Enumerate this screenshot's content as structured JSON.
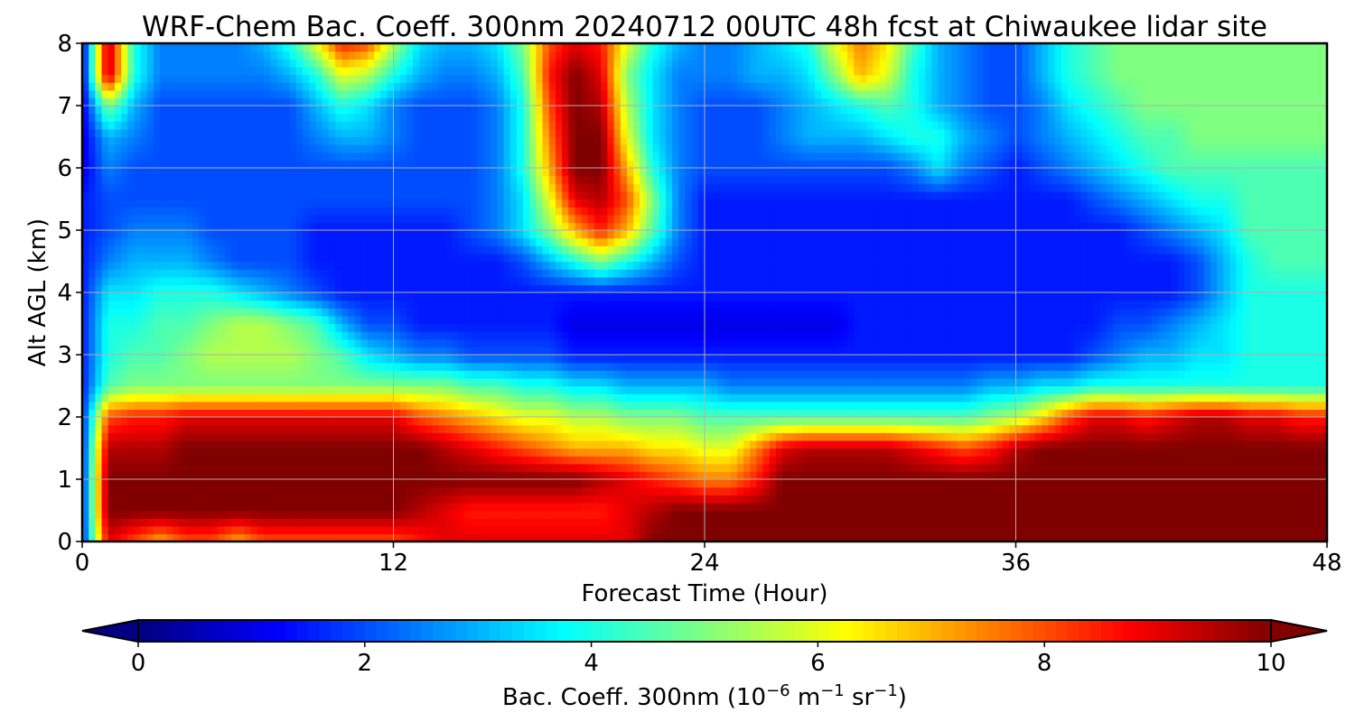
{
  "chart_data": {
    "type": "heatmap",
    "title": "WRF-Chem Bac. Coeff. 300nm  20240712 00UTC 48h fcst at Chiwaukee lidar site",
    "xlabel": "Forecast Time (Hour)",
    "ylabel": "Alt AGL (km)",
    "xlim": [
      0,
      48
    ],
    "ylim": [
      0,
      8
    ],
    "xticks": [
      0,
      12,
      24,
      36,
      48
    ],
    "yticks": [
      0,
      1,
      2,
      3,
      4,
      5,
      6,
      7,
      8
    ],
    "grid": true,
    "colormap": "jet",
    "colorbar": {
      "orientation": "horizontal",
      "placement": "bottom",
      "range": [
        0,
        10
      ],
      "ticks": [
        0,
        2,
        4,
        6,
        8,
        10
      ],
      "extend": "both",
      "label": "Bac. Coeff. 300nm  (10",
      "label_exp1": "−6",
      "label_mid": " m",
      "label_exp2": "−1",
      "label_mid2": " sr",
      "label_exp3": "−1",
      "label_end": ")"
    },
    "x": [
      0,
      1,
      2,
      3,
      4,
      5,
      6,
      7,
      8,
      9,
      10,
      11,
      12,
      13,
      14,
      15,
      16,
      17,
      18,
      19,
      20,
      21,
      22,
      23,
      24,
      25,
      26,
      27,
      28,
      29,
      30,
      31,
      32,
      33,
      34,
      35,
      36,
      37,
      38,
      39,
      40,
      41,
      42,
      43,
      44,
      45,
      46,
      47,
      48
    ],
    "y": [
      0,
      0.5,
      1,
      1.5,
      2,
      2.5,
      3,
      3.5,
      4,
      4.5,
      5,
      5.5,
      6,
      6.5,
      7,
      7.5,
      8
    ],
    "z": [
      [
        1.5,
        9,
        8,
        7,
        8,
        8,
        7,
        8,
        8,
        8,
        8,
        8,
        8,
        8.5,
        9,
        9,
        9,
        9,
        9,
        9,
        9,
        9,
        10,
        10,
        10,
        10,
        10,
        10,
        10,
        10,
        10,
        10,
        10,
        10,
        10,
        10,
        10,
        10,
        10,
        10,
        10,
        10,
        10,
        10,
        10,
        10,
        10,
        10,
        10
      ],
      [
        1.5,
        10,
        10,
        10,
        10,
        10,
        10,
        10,
        10,
        10,
        10,
        10,
        10,
        9.5,
        9,
        8.5,
        8.5,
        8.5,
        8.5,
        8.5,
        8.5,
        9,
        9.5,
        10,
        10,
        10,
        10,
        10,
        10,
        10,
        10,
        10,
        10,
        10,
        10,
        10,
        10,
        10,
        10,
        10,
        10,
        10,
        10,
        10,
        10,
        10,
        10,
        10,
        10
      ],
      [
        1.5,
        10,
        10,
        10,
        10,
        10,
        10,
        10,
        10,
        10,
        10,
        10,
        10,
        10,
        10,
        10,
        10,
        10,
        10,
        10,
        9.5,
        9,
        8.5,
        8,
        7.5,
        7.5,
        8.5,
        10,
        10,
        10,
        10,
        10,
        10,
        10,
        10,
        10,
        10,
        10,
        10,
        10,
        10,
        10,
        10,
        10,
        10,
        10,
        10,
        10,
        10
      ],
      [
        1.5,
        9.5,
        9.5,
        9.5,
        10,
        10,
        10,
        10,
        10,
        10,
        10,
        10,
        10,
        10,
        9.5,
        9,
        8.5,
        8,
        7.5,
        7,
        7,
        7,
        6.5,
        6.5,
        6,
        6,
        7.5,
        9,
        9.5,
        9.5,
        9.5,
        9.5,
        9,
        8.5,
        8,
        8.5,
        9.5,
        10,
        10,
        10,
        10,
        10,
        10,
        10,
        10,
        10,
        10,
        10,
        10
      ],
      [
        1.5,
        8,
        8.5,
        8.5,
        9,
        9,
        9,
        9,
        9,
        9,
        9,
        9,
        9,
        8,
        7.5,
        7,
        6.5,
        6,
        6,
        5.5,
        5.5,
        5,
        5,
        5,
        4.5,
        4.5,
        4.5,
        4.5,
        4.5,
        4.5,
        4.5,
        4.5,
        4.5,
        4.5,
        4.5,
        5,
        5.5,
        6.5,
        8,
        9,
        9,
        8.5,
        9,
        9.5,
        9.5,
        9,
        9,
        8.5,
        8.5
      ],
      [
        1.5,
        4.5,
        5,
        5,
        5,
        5,
        5,
        5,
        5,
        5,
        5,
        5,
        5,
        5,
        5,
        4.5,
        4.5,
        4,
        4,
        3.5,
        3.5,
        3,
        3,
        3,
        3,
        2.5,
        2.5,
        2.5,
        2.5,
        2.5,
        2.5,
        2.5,
        2.5,
        2.5,
        2.5,
        3,
        3,
        3.5,
        3.5,
        4,
        4,
        4,
        4,
        4,
        4,
        4,
        4,
        4,
        4
      ],
      [
        1.5,
        4,
        4.5,
        4.5,
        5,
        5.5,
        5.5,
        5.5,
        5.5,
        5,
        4.5,
        3.5,
        3,
        2.5,
        2.5,
        2,
        2,
        2,
        2,
        1.5,
        1.5,
        1.5,
        1.5,
        1.5,
        1.5,
        1.5,
        1.5,
        1.5,
        1.5,
        1.5,
        1.5,
        1.5,
        1.5,
        1.5,
        1.5,
        1.5,
        1.5,
        1.5,
        1.5,
        2,
        2.5,
        3,
        3,
        3.5,
        3.5,
        4,
        4,
        4,
        4
      ],
      [
        1.5,
        4,
        4,
        4.5,
        4.5,
        5,
        5.5,
        5.5,
        5,
        4.5,
        3,
        2,
        2,
        1.5,
        1.5,
        1.5,
        1.5,
        1.5,
        1.5,
        1,
        1,
        1,
        1,
        1,
        1,
        1,
        1,
        1,
        1,
        1,
        1.5,
        1.5,
        1.5,
        1.5,
        1.5,
        1.5,
        1.5,
        1.5,
        1.5,
        1.5,
        2,
        2,
        2.5,
        3,
        3.5,
        4,
        4,
        4,
        4
      ],
      [
        1.5,
        3.5,
        3.5,
        4,
        4,
        4,
        3.5,
        3,
        2.5,
        2,
        1.5,
        1.5,
        1.5,
        1.5,
        1.5,
        1.5,
        1.5,
        1.5,
        1.5,
        1.5,
        1.5,
        1.5,
        1.5,
        1.5,
        1.5,
        1.5,
        1.5,
        1.5,
        1.5,
        1.5,
        1.5,
        1.5,
        1.5,
        1.5,
        1.5,
        1.5,
        1.5,
        1.5,
        1.5,
        1.5,
        1.5,
        1.5,
        1.5,
        2,
        3,
        4,
        4,
        4,
        4
      ],
      [
        1.5,
        2.5,
        3,
        3,
        3,
        2.5,
        2,
        2,
        2,
        1.5,
        1.5,
        1.5,
        1.5,
        1.5,
        1.5,
        1.5,
        1.5,
        2,
        3,
        4,
        5,
        4,
        3,
        2,
        1.5,
        1.5,
        1.5,
        1.5,
        1.5,
        1.5,
        1.5,
        1.5,
        1.5,
        1.5,
        1.5,
        1.5,
        1.5,
        1.5,
        1.5,
        1.5,
        1.5,
        1.5,
        1.5,
        2,
        3,
        4,
        4.5,
        4.5,
        4.5
      ],
      [
        1.5,
        2,
        2.5,
        2.5,
        2.5,
        2,
        2,
        2,
        2,
        1.5,
        1.5,
        1.5,
        1.5,
        1.5,
        1.5,
        2,
        2.5,
        3.5,
        5,
        7,
        8.5,
        7,
        4.5,
        2.5,
        1.5,
        1.5,
        1.5,
        1.5,
        1.5,
        1.5,
        1.5,
        1.5,
        1.5,
        1.5,
        1.5,
        1.5,
        1.5,
        1.5,
        1.5,
        1.5,
        1.5,
        2,
        2.5,
        3,
        3.5,
        4.5,
        4.5,
        4.5,
        4.5
      ],
      [
        1.5,
        2,
        2,
        2,
        2,
        2,
        2,
        2,
        2,
        2,
        2,
        2,
        2,
        2,
        2,
        2,
        2.5,
        3.5,
        6,
        9,
        9.5,
        8,
        5,
        2.5,
        1.5,
        1.5,
        1.5,
        1.5,
        1.5,
        1.5,
        1.5,
        1.5,
        1.5,
        1.5,
        1.5,
        1.5,
        1.5,
        1.5,
        1.5,
        2,
        2.5,
        3,
        3.5,
        4,
        4,
        4.5,
        4.5,
        4.5,
        4.5
      ],
      [
        1,
        2.5,
        2,
        2,
        2,
        2,
        2,
        2,
        2,
        2,
        2,
        2,
        2,
        2,
        2,
        2,
        2.5,
        4,
        7,
        10,
        10,
        7,
        4,
        2.5,
        2,
        2,
        2,
        2,
        2,
        2,
        2,
        2,
        2.5,
        3.5,
        2.5,
        2,
        1.5,
        2,
        2.5,
        3,
        3.5,
        4,
        4.5,
        4.5,
        4.5,
        4.5,
        4.5,
        4.5,
        4.5
      ],
      [
        1,
        3,
        2.5,
        2,
        2,
        2,
        2,
        2,
        2,
        2.5,
        3,
        3,
        2.5,
        2,
        2,
        2,
        2.5,
        4,
        7.5,
        10,
        10,
        6,
        3.5,
        2.5,
        2,
        2,
        2,
        2.5,
        3,
        3,
        3,
        3.5,
        4,
        4,
        3,
        2.5,
        2,
        2.5,
        3,
        3.5,
        4,
        4.5,
        4.5,
        5,
        5,
        5,
        5,
        5,
        5
      ],
      [
        1,
        5,
        3,
        2,
        2,
        2,
        2,
        2,
        2,
        3,
        4,
        3.5,
        2.5,
        2,
        2,
        2,
        2.5,
        4,
        8,
        10,
        9.5,
        5.5,
        3.5,
        2.5,
        2,
        2,
        2,
        2.5,
        3,
        3.5,
        4,
        4.5,
        4,
        3,
        2.5,
        2,
        2,
        2.5,
        3.5,
        4,
        4.5,
        5,
        5,
        5,
        5,
        5,
        5,
        5,
        5
      ],
      [
        1,
        9.5,
        4,
        2.5,
        2.5,
        2.5,
        2.5,
        2.5,
        3,
        4,
        6,
        5.5,
        4,
        3,
        2.5,
        2.5,
        3,
        4.5,
        8.5,
        10,
        9,
        5,
        3.5,
        2.5,
        2.5,
        2.5,
        3,
        3,
        3.5,
        5,
        7,
        6,
        4,
        3,
        2.5,
        2,
        2,
        3,
        4,
        4.5,
        5,
        5,
        5,
        5,
        5,
        5,
        5,
        5,
        5
      ],
      [
        1,
        9.5,
        4,
        2.5,
        2.5,
        2.5,
        2.5,
        3,
        4,
        6,
        8.5,
        8,
        5.5,
        3.5,
        3,
        3,
        3.5,
        5,
        8,
        9,
        8.5,
        6,
        4,
        3,
        2.5,
        2.5,
        3,
        3.5,
        4,
        6,
        7.5,
        6.5,
        4.5,
        3,
        2.5,
        2,
        2,
        3,
        4,
        4.5,
        5,
        5,
        5,
        5,
        5,
        5,
        5,
        5,
        5
      ]
    ]
  }
}
